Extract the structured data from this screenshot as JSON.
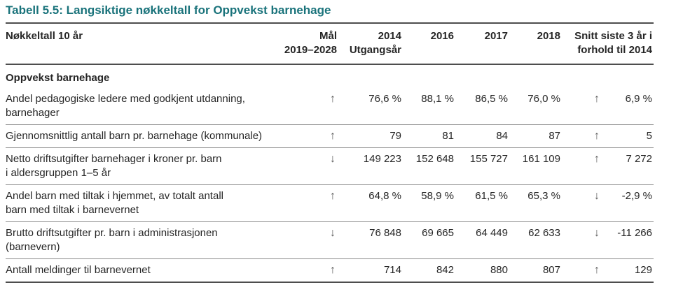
{
  "title": "Tabell 5.5: Langsiktige nøkkeltall for Oppvekst barnehage",
  "colors": {
    "title_accent": "#1a737b",
    "text": "#262626",
    "arrow": "#595959",
    "border_strong": "#4d4d4d",
    "border_light": "#8c8c8c"
  },
  "table": {
    "headers": {
      "label": "Nøkkeltall 10 år",
      "goal": "Mål\n2019–2028",
      "y2014": "2014\nUtgangsår",
      "y2016": "2016",
      "y2017": "2017",
      "y2018": "2018",
      "snitt": "Snitt siste 3 år i\nforhold til 2014"
    },
    "section": "Oppvekst barnehage",
    "rows": [
      {
        "label": "Andel pedagogiske ledere med godkjent utdanning,\nbarnehager",
        "goal": "↑",
        "v2014": "76,6 %",
        "v2016": "88,1 %",
        "v2017": "86,5 %",
        "v2018": "76,0 %",
        "trend": "↑",
        "diff": "6,9 %"
      },
      {
        "label": "Gjennomsnittlig antall barn pr. barnehage (kommunale)",
        "goal": "↑",
        "v2014": "79",
        "v2016": "81",
        "v2017": "84",
        "v2018": "87",
        "trend": "↑",
        "diff": "5"
      },
      {
        "label": "Netto driftsutgifter barnehager i kroner pr. barn\ni aldersgruppen 1–5 år",
        "goal": "↓",
        "v2014": "149 223",
        "v2016": "152 648",
        "v2017": "155 727",
        "v2018": "161 109",
        "trend": "↑",
        "diff": "7 272"
      },
      {
        "label": "Andel barn med tiltak i hjemmet, av totalt antall\nbarn med tiltak i barnevernet",
        "goal": "↑",
        "v2014": "64,8 %",
        "v2016": "58,9 %",
        "v2017": "61,5 %",
        "v2018": "65,3 %",
        "trend": "↓",
        "diff": "-2,9 %"
      },
      {
        "label": "Brutto driftsutgifter pr. barn i administrasjonen\n(barnevern)",
        "goal": "↓",
        "v2014": "76 848",
        "v2016": "69 665",
        "v2017": "64 449",
        "v2018": "62 633",
        "trend": "↓",
        "diff": "-11 266"
      },
      {
        "label": "Antall meldinger til barnevernet",
        "goal": "↑",
        "v2014": "714",
        "v2016": "842",
        "v2017": "880",
        "v2018": "807",
        "trend": "↑",
        "diff": "129"
      }
    ]
  }
}
